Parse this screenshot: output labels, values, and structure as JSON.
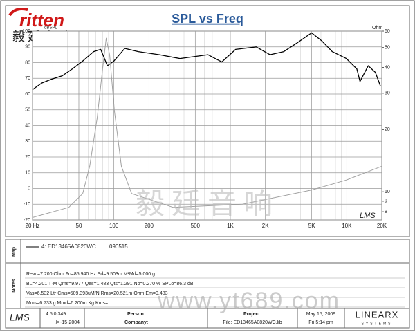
{
  "header": {
    "logo": "ritten",
    "logo_cn": "毅廷音响"
  },
  "chart_data": {
    "type": "line",
    "title": "SPL vs Freq",
    "y_label": "dBSPL",
    "y2_label": "Ohm",
    "watermark": "LMS",
    "x_log": true,
    "xlim": [
      20,
      20000
    ],
    "xticks": [
      {
        "value": 20,
        "label": "20 Hz"
      },
      50,
      100,
      200,
      500,
      {
        "value": 1000,
        "label": "1K"
      },
      {
        "value": 2000,
        "label": "2K"
      },
      {
        "value": 5000,
        "label": "5K"
      },
      {
        "value": 10000,
        "label": "10K"
      },
      {
        "value": 20000,
        "label": "20K"
      }
    ],
    "ylim": [
      -20,
      100
    ],
    "yticks": [
      -20,
      -10,
      0,
      10,
      20,
      30,
      40,
      50,
      60,
      70,
      80,
      90,
      100
    ],
    "y2_log": true,
    "y2lim": [
      7.3,
      60
    ],
    "y2ticks": [
      8,
      9,
      10,
      20,
      30,
      40,
      50,
      60
    ],
    "grid": true,
    "series": [
      {
        "color": "#000000",
        "x": [
          20,
          24,
          29,
          36,
          44,
          54,
          67,
          77,
          88,
          100,
          124,
          162,
          246,
          369,
          642,
          844,
          1111,
          1670,
          2191,
          2880,
          3790,
          4990,
          6130,
          7500,
          9920,
          12200,
          13000,
          15300,
          17600,
          19500
        ],
        "values": [
          62.8,
          67,
          69.4,
          71.6,
          76,
          81,
          87,
          88.4,
          78,
          81,
          89,
          87,
          85,
          82.6,
          85,
          80.4,
          88.4,
          90,
          85,
          87,
          92.8,
          98.9,
          93.7,
          87,
          82.6,
          76,
          68,
          78,
          73.8,
          65
        ]
      },
      {
        "color": "#a0a0a0",
        "axis": "y2",
        "x": [
          20,
          41,
          54,
          62,
          72,
          80,
          86,
          92,
          101,
          116,
          142,
          323,
          1273,
          5010,
          9940,
          20000
        ],
        "values": [
          7.5,
          8.4,
          9.8,
          13.3,
          22.9,
          39.3,
          55.5,
          45.8,
          24.7,
          13.3,
          9.8,
          8.4,
          8.7,
          10.2,
          11.4,
          13.3
        ]
      }
    ]
  },
  "map": {
    "label": "Map",
    "entry": "4: ED13465A0820WC",
    "date": "090515"
  },
  "notes": {
    "label": "Notes",
    "lines": [
      "Revc=7.200 Ohm  Fo=85.940 Hz  Sd=9.503m M²Md=5.000 g",
      "BL=4.201 T·M  Qms=9.977  Qes=1.483  Qts=1.291  No=0.270 %  SPLo=86.3 dB",
      "Vas=6.532 Ltr  Cms=509.393uM/N  Rms=20.521m Ohm  Em=0.483",
      "Mms=6.733 g  Mmd=6.200m Kg  Kms="
    ]
  },
  "footer": {
    "logo": "LMS",
    "version": "4.5.0.349",
    "build_date": "十一月-15-2004",
    "person": "Person:",
    "company": "Company:",
    "project": "Project:",
    "file": "File: ED13465A0820WC.lib",
    "date": "May 15, 2009",
    "time": "Fri  5:14 pm",
    "brand": "LINEARX",
    "brand_sub": "SYSTEMS"
  },
  "watermarks": [
    "毅廷音响",
    "www.yt689.com"
  ]
}
